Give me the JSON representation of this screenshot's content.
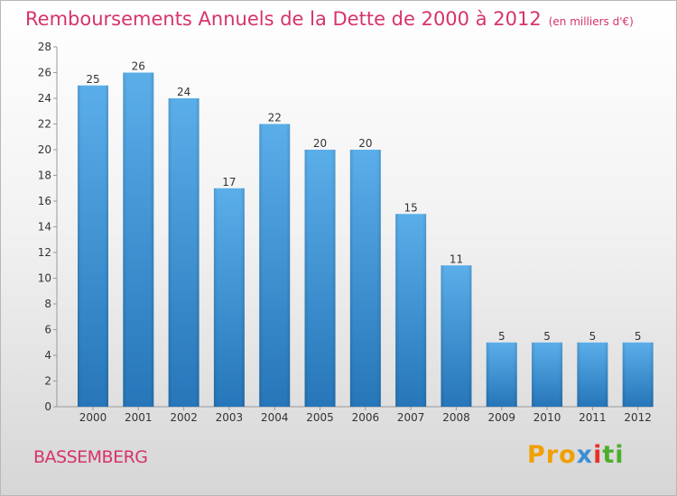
{
  "chart_data": {
    "type": "bar",
    "title": "Remboursements Annuels de la Dette de 2000 à 2012",
    "unit": "(en milliers d'€)",
    "categories": [
      "2000",
      "2001",
      "2002",
      "2003",
      "2004",
      "2005",
      "2006",
      "2007",
      "2008",
      "2009",
      "2010",
      "2011",
      "2012"
    ],
    "values": [
      25,
      26,
      24,
      17,
      22,
      20,
      20,
      15,
      11,
      5,
      5,
      5,
      5
    ],
    "ylim": [
      0,
      28
    ],
    "yticks": [
      0,
      2,
      4,
      6,
      8,
      10,
      12,
      14,
      16,
      18,
      20,
      22,
      24,
      26,
      28
    ],
    "bar_color_top": "#5aaee9",
    "bar_color_bottom": "#2676b9",
    "grid": false,
    "legend": "none"
  },
  "footer": {
    "city": "BASSEMBERG",
    "logo": {
      "p1": "Pro",
      "p2": "x",
      "p3": "i",
      "p4": "ti"
    }
  },
  "colors": {
    "title": "#d6336c",
    "text": "#333333"
  }
}
